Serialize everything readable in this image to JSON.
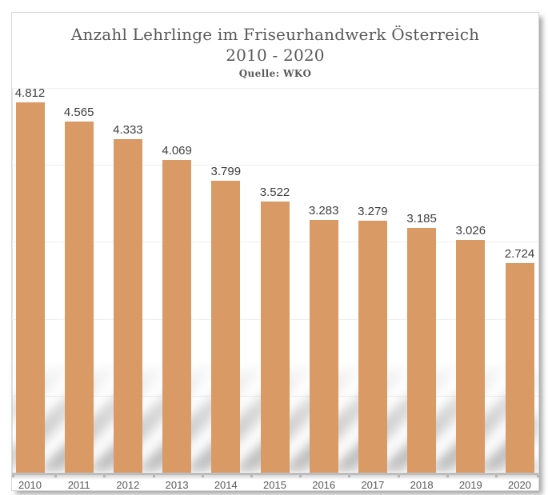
{
  "chart_data": {
    "type": "bar",
    "title": "Anzahl Lehrlinge im Friseurhandwerk Österreich",
    "subtitle": "2010 - 2020",
    "source": "Quelle: WKO",
    "categories": [
      "2010",
      "2011",
      "2012",
      "2013",
      "2014",
      "2015",
      "2016",
      "2017",
      "2018",
      "2019",
      "2020"
    ],
    "values": [
      4812,
      4565,
      4333,
      4069,
      3799,
      3522,
      3283,
      3279,
      3185,
      3026,
      2724
    ],
    "value_labels": [
      "4.812",
      "4.565",
      "4.333",
      "4.069",
      "3.799",
      "3.522",
      "3.283",
      "3.279",
      "3.185",
      "3.026",
      "2.724"
    ],
    "xlabel": "",
    "ylabel": "",
    "ylim": [
      0,
      5000
    ],
    "gridline_step": 1000,
    "grid": true,
    "legend": "none",
    "bar_color": "#d99a66"
  },
  "colors": {
    "bar": "#d99a66",
    "title_text": "#595959",
    "value_label_text": "#3f3f3f",
    "axis_label_text": "#595959",
    "gridline": "#efefef",
    "axis_line": "#bdbdbd"
  }
}
